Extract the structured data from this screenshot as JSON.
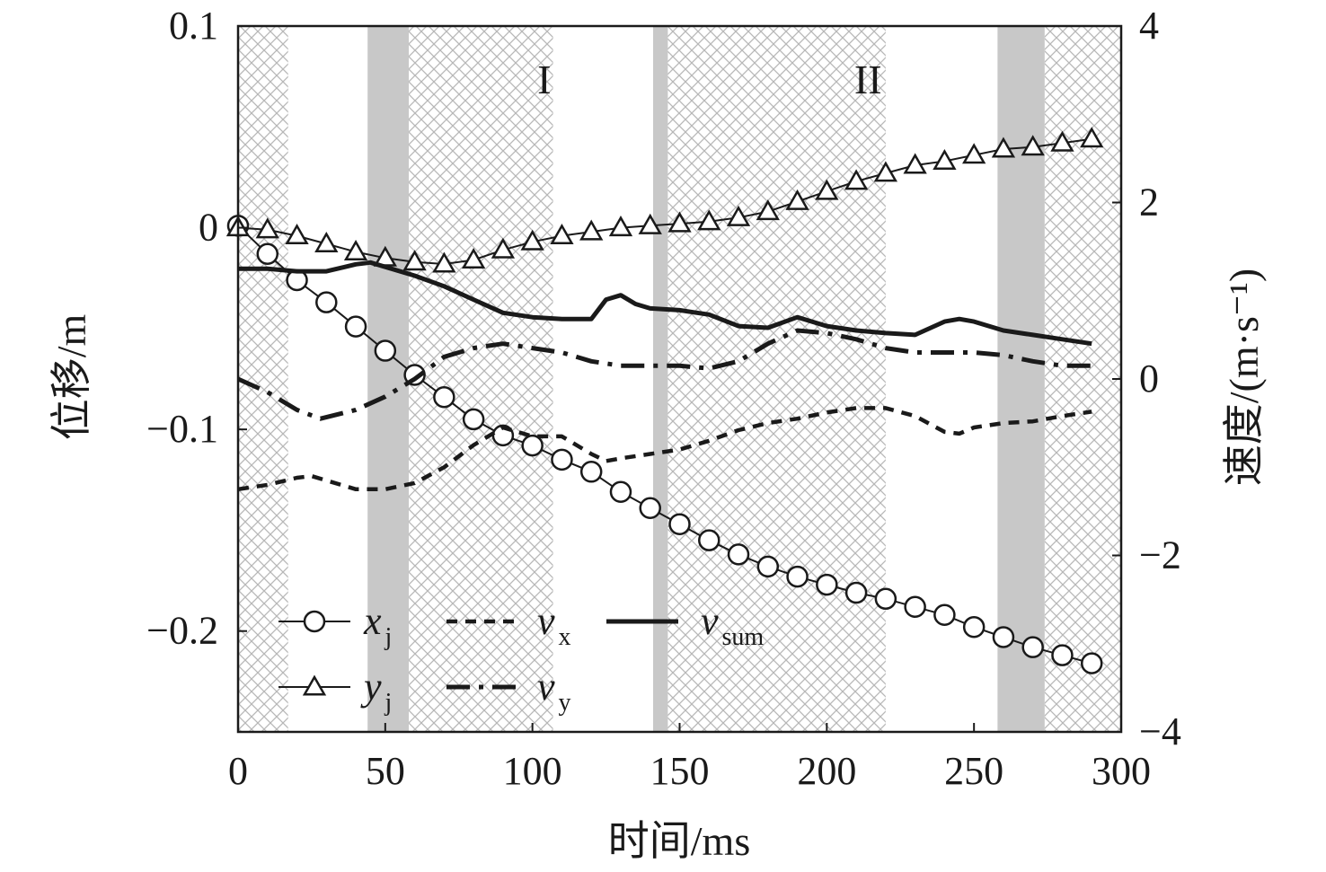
{
  "chart_data": {
    "type": "line",
    "xlabel": "时间/ms",
    "ylabel_left": "位移/m",
    "ylabel_right": "速度/(m·s⁻¹)",
    "xlim": [
      0,
      300
    ],
    "ylim_left": [
      -0.25,
      0.1
    ],
    "ylim_right": [
      -4,
      4
    ],
    "x_ticks": [
      "0",
      "50",
      "100",
      "150",
      "200",
      "250",
      "300"
    ],
    "y_left_ticks": [
      "0.1",
      "0",
      "−0.1",
      "−0.2"
    ],
    "y_right_ticks": [
      "4",
      "2",
      "0",
      "−2",
      "−4"
    ],
    "grid": false,
    "legend_position": "lower-left",
    "region_labels": [
      {
        "text": "I",
        "x": 104
      },
      {
        "text": "II",
        "x": 214
      }
    ],
    "shaded_bands": {
      "gray": [
        [
          44,
          58
        ],
        [
          141,
          146
        ],
        [
          258,
          274
        ]
      ],
      "hatched": [
        [
          0,
          17
        ],
        [
          58,
          107
        ],
        [
          146,
          220
        ],
        [
          274,
          300
        ]
      ]
    },
    "series": [
      {
        "name": "x",
        "subscript": "j",
        "axis": "left",
        "style": "circle-marker",
        "x": [
          0,
          10,
          20,
          30,
          40,
          50,
          60,
          70,
          80,
          90,
          100,
          110,
          120,
          130,
          140,
          150,
          160,
          170,
          180,
          190,
          200,
          210,
          220,
          230,
          240,
          250,
          260,
          270,
          280,
          290
        ],
        "y": [
          0.001,
          -0.013,
          -0.026,
          -0.037,
          -0.049,
          -0.061,
          -0.073,
          -0.084,
          -0.095,
          -0.103,
          -0.108,
          -0.115,
          -0.121,
          -0.131,
          -0.139,
          -0.147,
          -0.155,
          -0.162,
          -0.168,
          -0.173,
          -0.177,
          -0.181,
          -0.184,
          -0.188,
          -0.192,
          -0.198,
          -0.203,
          -0.208,
          -0.212,
          -0.216
        ]
      },
      {
        "name": "y",
        "subscript": "j",
        "axis": "left",
        "style": "triangle-marker",
        "x": [
          0,
          10,
          20,
          30,
          40,
          50,
          60,
          70,
          80,
          90,
          100,
          110,
          120,
          130,
          140,
          150,
          160,
          170,
          180,
          190,
          200,
          210,
          220,
          230,
          240,
          250,
          260,
          270,
          280,
          290
        ],
        "y": [
          -0.0,
          -0.001,
          -0.004,
          -0.008,
          -0.012,
          -0.015,
          -0.017,
          -0.018,
          -0.016,
          -0.011,
          -0.007,
          -0.004,
          -0.002,
          0.0,
          0.001,
          0.002,
          0.003,
          0.005,
          0.008,
          0.013,
          0.018,
          0.023,
          0.027,
          0.031,
          0.033,
          0.036,
          0.039,
          0.04,
          0.042,
          0.044
        ]
      },
      {
        "name": "v",
        "subscript": "x",
        "axis": "right",
        "style": "dashed",
        "x": [
          0,
          10,
          20,
          25,
          30,
          40,
          50,
          60,
          70,
          80,
          90,
          100,
          110,
          120,
          125,
          130,
          140,
          150,
          160,
          170,
          180,
          190,
          200,
          210,
          220,
          230,
          240,
          245,
          250,
          260,
          270,
          280,
          290
        ],
        "y": [
          -1.25,
          -1.2,
          -1.12,
          -1.1,
          -1.15,
          -1.25,
          -1.25,
          -1.18,
          -1.0,
          -0.75,
          -0.55,
          -0.65,
          -0.65,
          -0.85,
          -0.93,
          -0.9,
          -0.85,
          -0.8,
          -0.7,
          -0.58,
          -0.5,
          -0.45,
          -0.38,
          -0.33,
          -0.33,
          -0.42,
          -0.6,
          -0.62,
          -0.55,
          -0.5,
          -0.48,
          -0.42,
          -0.37
        ]
      },
      {
        "name": "v",
        "subscript": "y",
        "axis": "right",
        "style": "dash-dot",
        "x": [
          0,
          10,
          20,
          28,
          40,
          50,
          60,
          70,
          80,
          90,
          100,
          110,
          120,
          130,
          140,
          150,
          160,
          170,
          180,
          190,
          200,
          210,
          220,
          230,
          240,
          250,
          260,
          270,
          280,
          290
        ],
        "y": [
          0.0,
          -0.15,
          -0.35,
          -0.45,
          -0.35,
          -0.2,
          0.0,
          0.25,
          0.35,
          0.4,
          0.35,
          0.3,
          0.2,
          0.15,
          0.15,
          0.15,
          0.12,
          0.2,
          0.4,
          0.55,
          0.52,
          0.45,
          0.35,
          0.3,
          0.3,
          0.3,
          0.27,
          0.2,
          0.15,
          0.15
        ]
      },
      {
        "name": "v",
        "subscript": "sum",
        "axis": "right",
        "style": "solid",
        "x": [
          0,
          10,
          20,
          30,
          40,
          45,
          50,
          60,
          70,
          80,
          90,
          100,
          110,
          120,
          125,
          130,
          135,
          140,
          150,
          160,
          170,
          180,
          190,
          200,
          210,
          220,
          230,
          240,
          245,
          250,
          260,
          270,
          280,
          290
        ],
        "y": [
          1.25,
          1.25,
          1.22,
          1.22,
          1.3,
          1.32,
          1.27,
          1.17,
          1.05,
          0.9,
          0.75,
          0.7,
          0.68,
          0.68,
          0.9,
          0.95,
          0.85,
          0.8,
          0.78,
          0.73,
          0.6,
          0.58,
          0.7,
          0.6,
          0.55,
          0.52,
          0.5,
          0.65,
          0.68,
          0.65,
          0.55,
          0.5,
          0.45,
          0.4
        ]
      }
    ]
  }
}
